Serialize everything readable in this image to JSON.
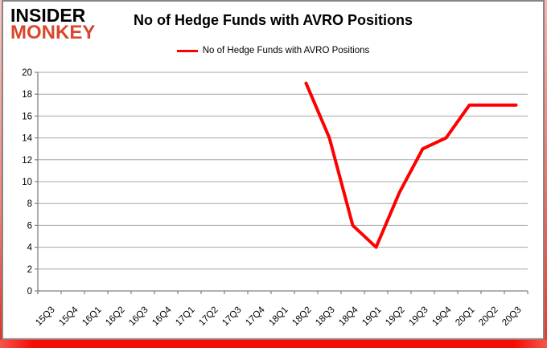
{
  "logo": {
    "line1": "INSIDER",
    "line2": "MONKEY"
  },
  "header": {
    "title": "No of Hedge Funds with AVRO Positions"
  },
  "legend": {
    "label": "No of Hedge Funds with AVRO Positions"
  },
  "colors": {
    "line_red": "#ff0000",
    "logo_red": "#d9472e",
    "border_red": "#f20d05",
    "gridline_gray": "#a6a6a6",
    "axis_gray": "#808080",
    "text_black": "#000000"
  },
  "chart_data": {
    "type": "line",
    "title": "No of Hedge Funds with AVRO Positions",
    "categories": [
      "15Q3",
      "15Q4",
      "16Q1",
      "16Q2",
      "16Q3",
      "16Q4",
      "17Q1",
      "17Q2",
      "17Q3",
      "17Q4",
      "18Q1",
      "18Q2",
      "18Q3",
      "18Q4",
      "19Q1",
      "19Q2",
      "19Q3",
      "19Q4",
      "20Q1",
      "20Q2",
      "20Q3"
    ],
    "series": [
      {
        "name": "No of Hedge Funds with AVRO Positions",
        "color": "#ff0000",
        "values": [
          null,
          null,
          null,
          null,
          null,
          null,
          null,
          null,
          null,
          null,
          null,
          19,
          14,
          6,
          4,
          9,
          13,
          14,
          17,
          17,
          17
        ]
      }
    ],
    "xlabel": "",
    "ylabel": "",
    "ylim": [
      0,
      20
    ],
    "ytick_step": 2,
    "grid": true,
    "legend_position": "top",
    "x_tick_label_rotation": -45
  }
}
